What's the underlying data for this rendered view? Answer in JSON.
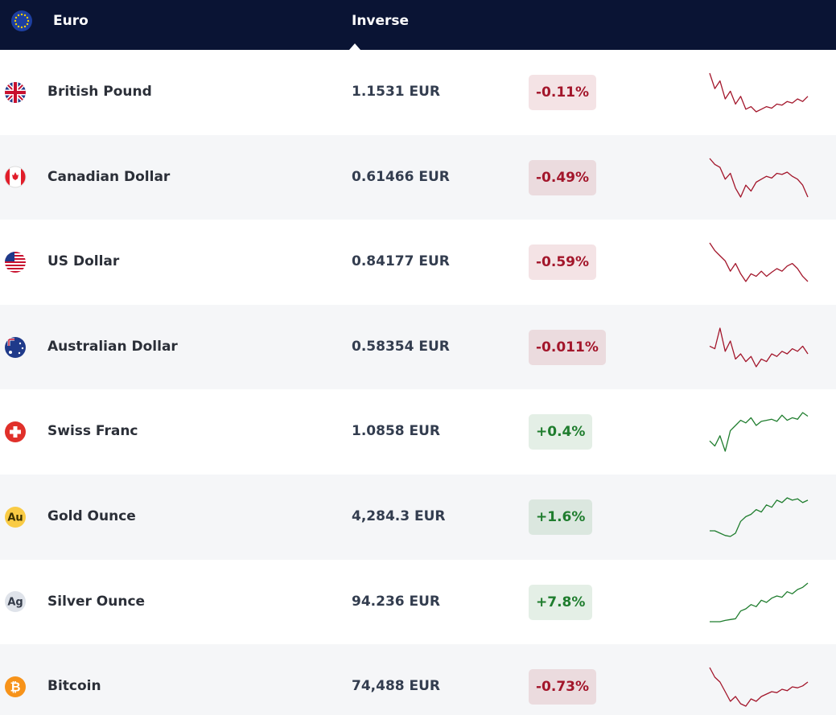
{
  "header": {
    "title": "Euro",
    "column": "Inverse"
  },
  "rows": [
    {
      "name": "British Pound",
      "value": "1.1531 EUR",
      "change": "-0.11%",
      "color": "#a3162b",
      "sparkline": [
        90,
        60,
        75,
        40,
        55,
        30,
        45,
        20,
        25,
        15,
        20,
        25,
        22,
        30,
        28,
        35,
        32,
        40,
        35,
        45
      ]
    },
    {
      "name": "Canadian Dollar",
      "value": "0.61466 EUR",
      "change": "-0.49%",
      "color": "#a3162b",
      "sparkline": [
        95,
        85,
        80,
        60,
        70,
        45,
        30,
        50,
        40,
        55,
        60,
        65,
        62,
        70,
        68,
        72,
        65,
        60,
        50,
        30
      ]
    },
    {
      "name": "US Dollar",
      "value": "0.84177 EUR",
      "change": "-0.59%",
      "color": "#a3162b",
      "sparkline": [
        95,
        80,
        70,
        60,
        40,
        55,
        35,
        20,
        35,
        30,
        40,
        30,
        38,
        45,
        40,
        50,
        55,
        45,
        30,
        20
      ]
    },
    {
      "name": "Australian Dollar",
      "value": "0.58354 EUR",
      "change": "-0.011%",
      "color": "#a3162b",
      "sparkline": [
        60,
        55,
        95,
        50,
        70,
        35,
        45,
        30,
        40,
        20,
        35,
        30,
        45,
        40,
        50,
        45,
        55,
        50,
        60,
        45
      ]
    },
    {
      "name": "Swiss Franc",
      "value": "1.0858 EUR",
      "change": "+0.4%",
      "color": "#1f7d2e",
      "sparkline": [
        30,
        20,
        40,
        10,
        50,
        60,
        70,
        65,
        75,
        60,
        68,
        70,
        72,
        68,
        80,
        70,
        75,
        72,
        85,
        78
      ]
    },
    {
      "icon": "Au",
      "name": "Gold Ounce",
      "value": "4,284.3 EUR",
      "change": "+1.6%",
      "color": "#1f7d2e",
      "sparkline": [
        20,
        20,
        15,
        10,
        8,
        15,
        40,
        50,
        55,
        65,
        60,
        75,
        70,
        85,
        80,
        90,
        85,
        88,
        80,
        85
      ]
    },
    {
      "icon": "Ag",
      "name": "Silver Ounce",
      "value": "94.236 EUR",
      "change": "+7.8%",
      "color": "#1f7d2e",
      "sparkline": [
        5,
        5,
        5,
        8,
        10,
        12,
        30,
        35,
        45,
        40,
        55,
        50,
        60,
        65,
        62,
        75,
        70,
        80,
        85,
        95
      ]
    },
    {
      "icon": "₿",
      "name": "Bitcoin",
      "value": "74,488 EUR",
      "change": "-0.73%",
      "color": "#a3162b",
      "sparkline": [
        90,
        70,
        60,
        40,
        20,
        30,
        15,
        10,
        25,
        20,
        30,
        35,
        40,
        38,
        45,
        42,
        50,
        48,
        52,
        60
      ]
    }
  ]
}
